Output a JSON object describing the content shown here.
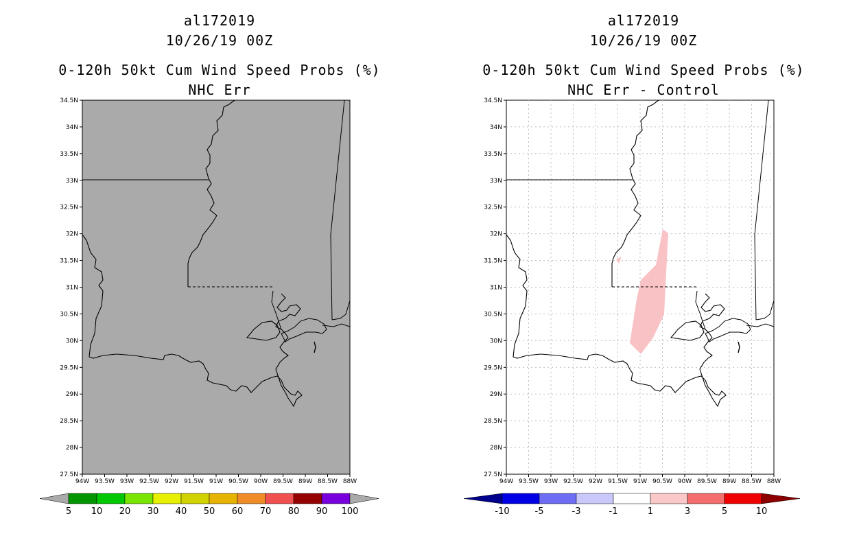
{
  "left_panel": {
    "storm_id": "al172019",
    "datetime": "10/26/19 00Z",
    "title": "0-120h 50kt Cum Wind Speed Probs (%)",
    "subtitle": "NHC Err",
    "map_fill": "#aaaaaa",
    "colorbar": {
      "labels": [
        "5",
        "10",
        "20",
        "30",
        "40",
        "50",
        "60",
        "70",
        "80",
        "90",
        "100"
      ],
      "colors": [
        "#009600",
        "#00c800",
        "#78e600",
        "#e6f000",
        "#d2d200",
        "#e6b400",
        "#f08c28",
        "#f05050",
        "#960000",
        "#7800dc"
      ],
      "end_color": "#aaaaaa"
    }
  },
  "right_panel": {
    "storm_id": "al172019",
    "datetime": "10/26/19 00Z",
    "title": "0-120h 50kt Cum Wind Speed Probs (%)",
    "subtitle": "NHC Err - Control",
    "shade_color": "#f9c3c6",
    "colorbar": {
      "labels": [
        "-10",
        "-5",
        "-3",
        "-1",
        "1",
        "3",
        "5",
        "10"
      ],
      "colors": [
        "#0000e6",
        "#6e6ef5",
        "#c8c8fa",
        "#ffffff",
        "#fac8c8",
        "#f56e6e",
        "#f00000"
      ],
      "left_end": "#00008c",
      "right_end": "#8c0000"
    }
  },
  "axes": {
    "lat_labels": [
      "27.5N",
      "28N",
      "28.5N",
      "29N",
      "29.5N",
      "30N",
      "30.5N",
      "31N",
      "31.5N",
      "32N",
      "32.5N",
      "33N",
      "33.5N",
      "34N",
      "34.5N"
    ],
    "lon_labels": [
      "94W",
      "93.5W",
      "93W",
      "92.5W",
      "92W",
      "91.5W",
      "91W",
      "90.5W",
      "90W",
      "89.5W",
      "89W",
      "88.5W",
      "88W"
    ]
  }
}
